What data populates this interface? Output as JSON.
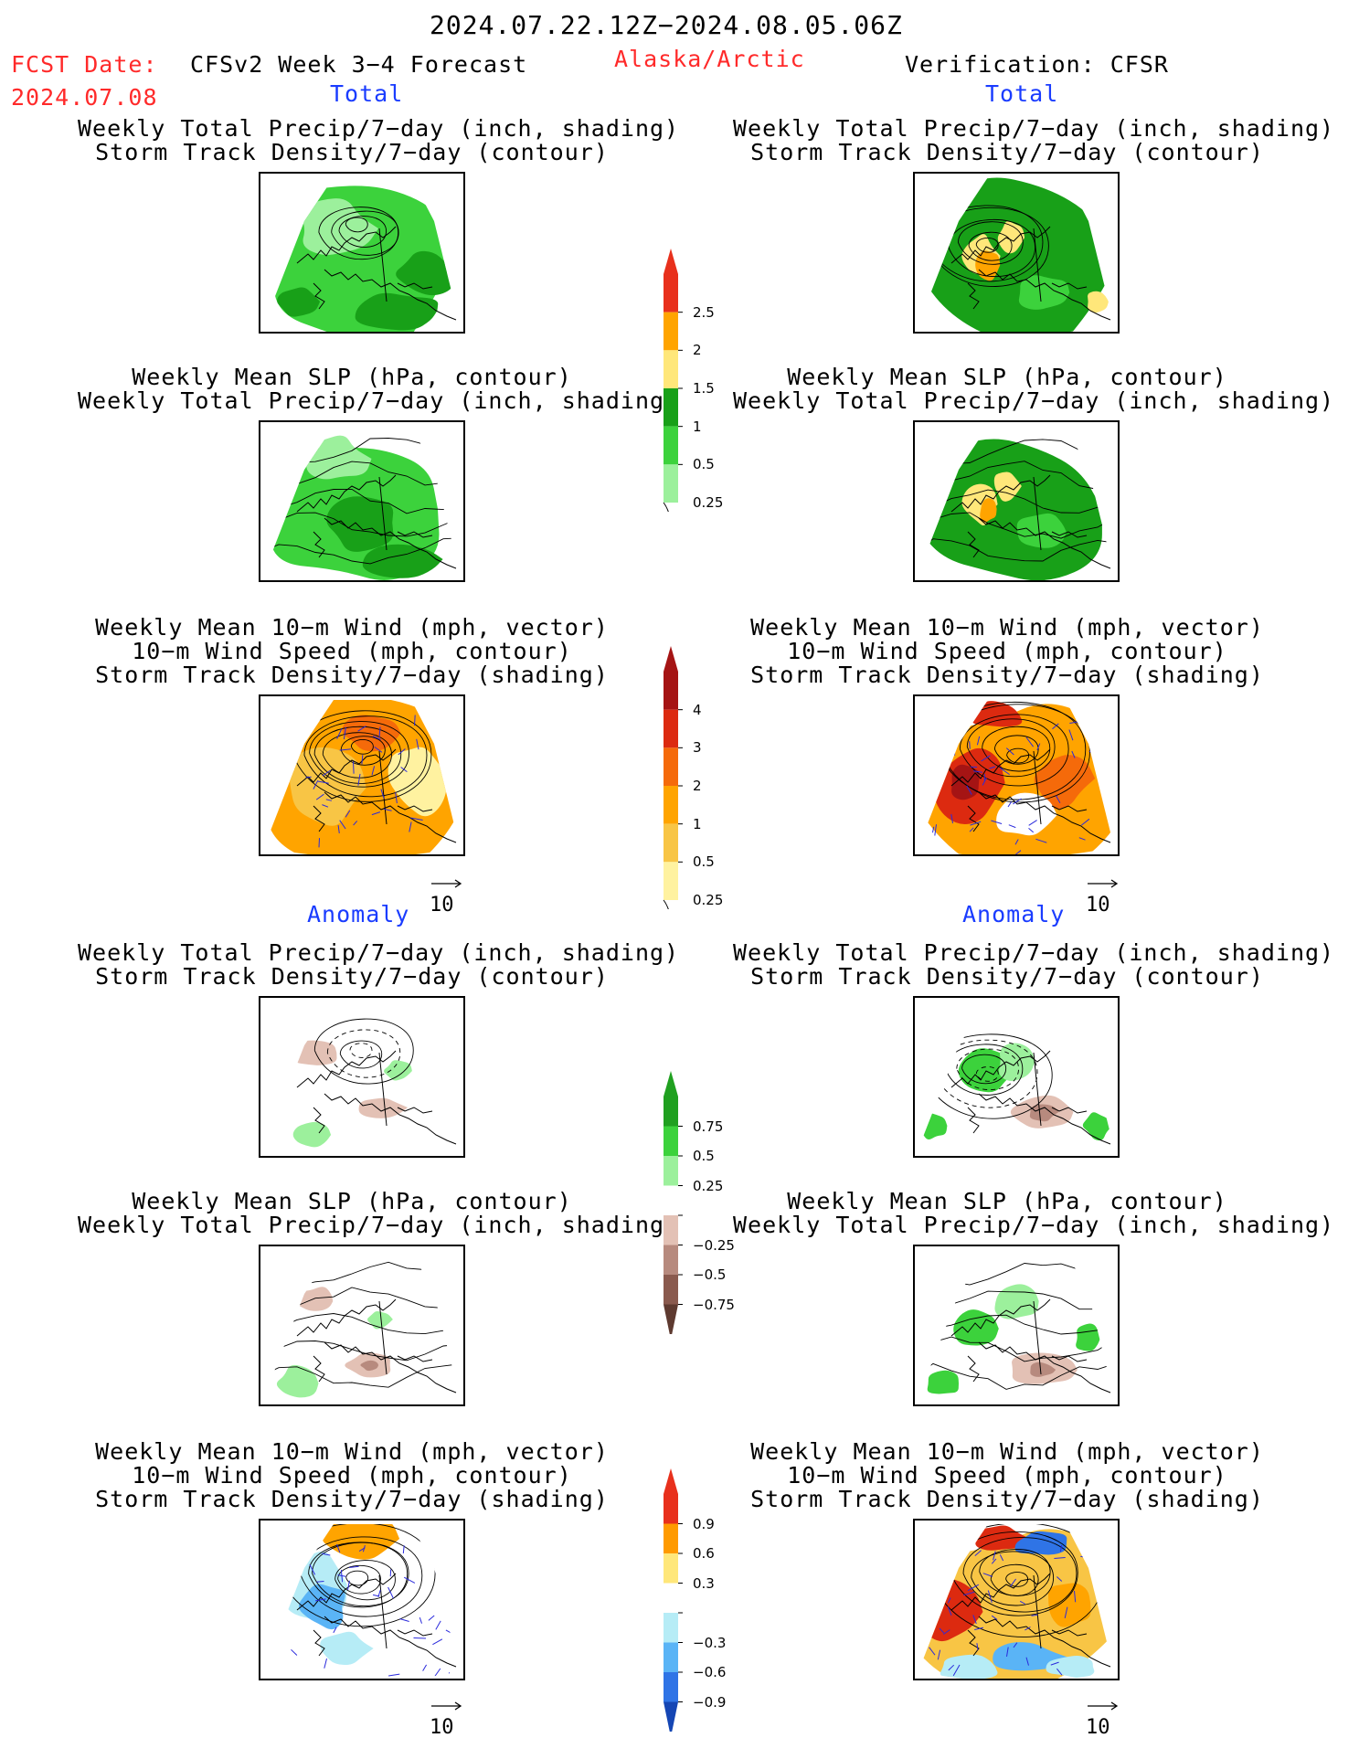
{
  "header": {
    "period": "2024.07.22.12Z−2024.08.05.06Z",
    "fcst_label": "FCST Date:",
    "fcst_date": "2024.07.08",
    "product": "CFSv2 Week 3−4 Forecast",
    "region": "Alaska/Arctic",
    "verification": "Verification: CFSR"
  },
  "sections": {
    "total": "Total",
    "anomaly": "Anomaly"
  },
  "titles": {
    "precip_storm": [
      "Weekly Total Precip/7−day (inch, shading)",
      "Storm Track Density/7−day (contour)"
    ],
    "slp_precip": [
      "Weekly Mean SLP (hPa, contour)",
      "Weekly Total Precip/7−day (inch, shading)"
    ],
    "wind_storm": [
      "Weekly Mean 10−m Wind (mph, vector)",
      "10−m Wind Speed (mph, contour)",
      "Storm Track Density/7−day (shading)"
    ]
  },
  "vector_reference": "10",
  "colorbars": {
    "precip_total": {
      "labels": [
        "2.5",
        "2",
        "1.5",
        "1",
        "0.5",
        "0.25"
      ],
      "colors": [
        "#e8301c",
        "#ffa400",
        "#ffe77a",
        "#18a018",
        "#3cd23c",
        "#9cf09c"
      ]
    },
    "storm_total": {
      "labels": [
        "4",
        "3",
        "2",
        "1",
        "0.5",
        "0.25"
      ],
      "colors": [
        "#a51414",
        "#dc2a10",
        "#f56a0a",
        "#ffa400",
        "#f8c545",
        "#fff2a0"
      ]
    },
    "precip_anom": {
      "labels": [
        "0.75",
        "0.5",
        "0.25",
        "−0.25",
        "−0.5",
        "−0.75"
      ],
      "colors": [
        "#20a020",
        "#3cd23c",
        "#9cf09c",
        "#ffffff",
        "#e3c1b5",
        "#b78a7e",
        "#8a5a4e",
        "#5e3a30"
      ]
    },
    "storm_anom": {
      "labels": [
        "0.9",
        "0.6",
        "0.3",
        "−0.3",
        "−0.6",
        "−0.9"
      ],
      "colors": [
        "#e8301c",
        "#ff9a00",
        "#ffe77a",
        "#ffffff",
        "#b6ecf6",
        "#5ab4f6",
        "#2f74e6",
        "#1546b4"
      ]
    }
  },
  "map_colors": {
    "precip_light": "#9cf09c",
    "precip_mid": "#3cd23c",
    "precip_dark": "#18a018",
    "precip_yellow": "#ffe77a",
    "precip_orange": "#ffa400",
    "storm_lightyellow": "#fff2a0",
    "storm_yellow": "#f8c545",
    "storm_orange": "#ffa400",
    "storm_redorange": "#f56a0a",
    "storm_red": "#dc2a10",
    "storm_darkred": "#a51414",
    "dry_light": "#e3c1b5",
    "dry_mid": "#b78a7e",
    "wet_light": "#9cf09c",
    "wet_mid": "#3cd23c",
    "cool_light": "#b6ecf6",
    "cool_mid": "#5ab4f6",
    "cool_dark": "#2f74e6"
  }
}
